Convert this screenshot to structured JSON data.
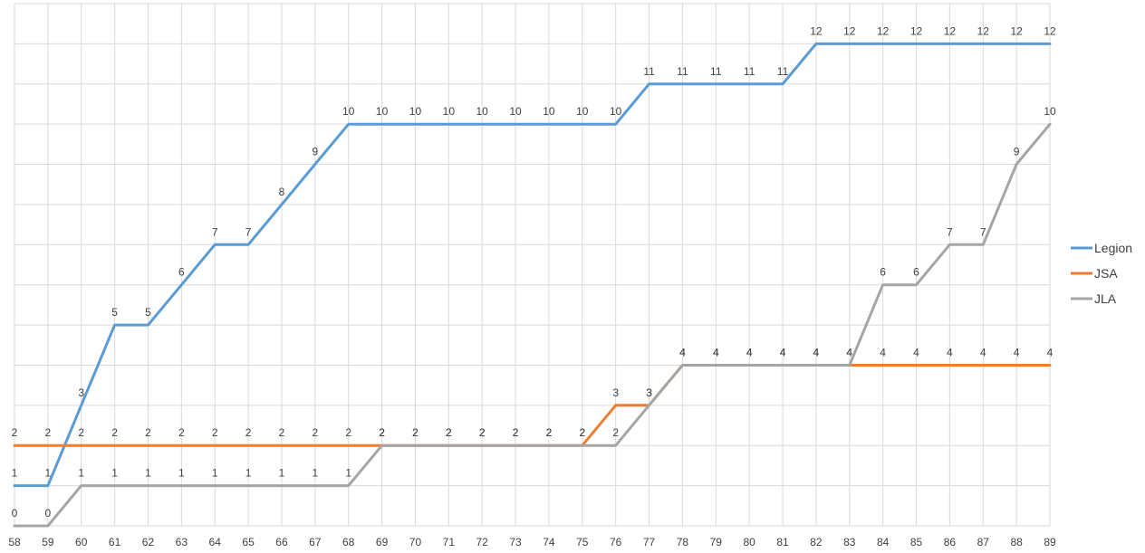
{
  "chart_data": {
    "type": "line",
    "title": "",
    "xlabel": "",
    "ylabel": "",
    "x": [
      "58",
      "59",
      "60",
      "61",
      "62",
      "63",
      "64",
      "65",
      "66",
      "67",
      "68",
      "69",
      "70",
      "71",
      "72",
      "73",
      "74",
      "75",
      "76",
      "77",
      "78",
      "79",
      "80",
      "81",
      "82",
      "83",
      "84",
      "85",
      "86",
      "87",
      "88",
      "89"
    ],
    "ylim": [
      0,
      13
    ],
    "grid": true,
    "legend_position": "right",
    "series": [
      {
        "name": "Legion",
        "color": "#5b9bd5",
        "values": [
          1,
          1,
          3,
          5,
          5,
          6,
          7,
          7,
          8,
          9,
          10,
          10,
          10,
          10,
          10,
          10,
          10,
          10,
          10,
          11,
          11,
          11,
          11,
          11,
          12,
          12,
          12,
          12,
          12,
          12,
          12,
          12
        ]
      },
      {
        "name": "JSA",
        "color": "#ed7d31",
        "values": [
          2,
          2,
          2,
          2,
          2,
          2,
          2,
          2,
          2,
          2,
          2,
          2,
          2,
          2,
          2,
          2,
          2,
          2,
          3,
          3,
          4,
          4,
          4,
          4,
          4,
          4,
          4,
          4,
          4,
          4,
          4,
          4
        ]
      },
      {
        "name": "JLA",
        "color": "#a5a5a5",
        "values": [
          0,
          0,
          1,
          1,
          1,
          1,
          1,
          1,
          1,
          1,
          1,
          2,
          2,
          2,
          2,
          2,
          2,
          2,
          2,
          3,
          4,
          4,
          4,
          4,
          4,
          4,
          6,
          6,
          7,
          7,
          9,
          10
        ]
      }
    ]
  }
}
